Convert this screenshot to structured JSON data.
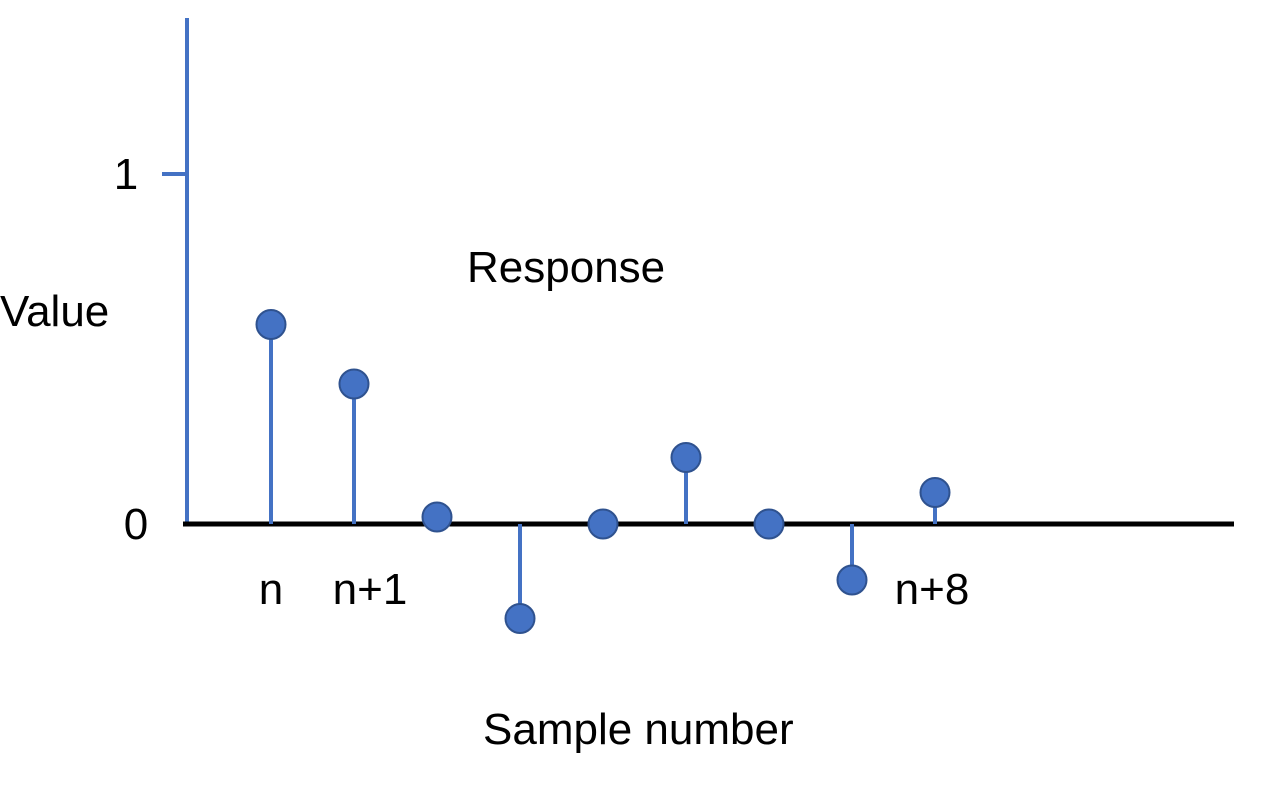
{
  "chart_data": {
    "type": "scatter",
    "style": "stem",
    "title": "Response",
    "xlabel": "Sample number",
    "ylabel": "Value",
    "x": [
      0,
      1,
      2,
      3,
      4,
      5,
      6,
      7,
      8
    ],
    "x_tick_labels": [
      {
        "x": 0,
        "label": "n"
      },
      {
        "x": 1,
        "label": "n+1"
      },
      {
        "x": 8,
        "label": "n+8"
      }
    ],
    "y_ticks": [
      {
        "y": 0,
        "label": "0"
      },
      {
        "y": 1,
        "label": "1"
      }
    ],
    "series": [
      {
        "values": [
          0.57,
          0.4,
          0.02,
          -0.27,
          0.0,
          0.19,
          0.0,
          -0.16,
          0.09
        ]
      }
    ],
    "ylim": [
      -0.45,
      1.45
    ],
    "xlim": [
      -1.0,
      11.7
    ],
    "grid": false,
    "colors": {
      "stem": "#4472C4",
      "marker_fill": "#4472C4",
      "marker_edge": "#2F528F",
      "y_axis": "#4472C4",
      "x_axis": "#000000"
    }
  }
}
